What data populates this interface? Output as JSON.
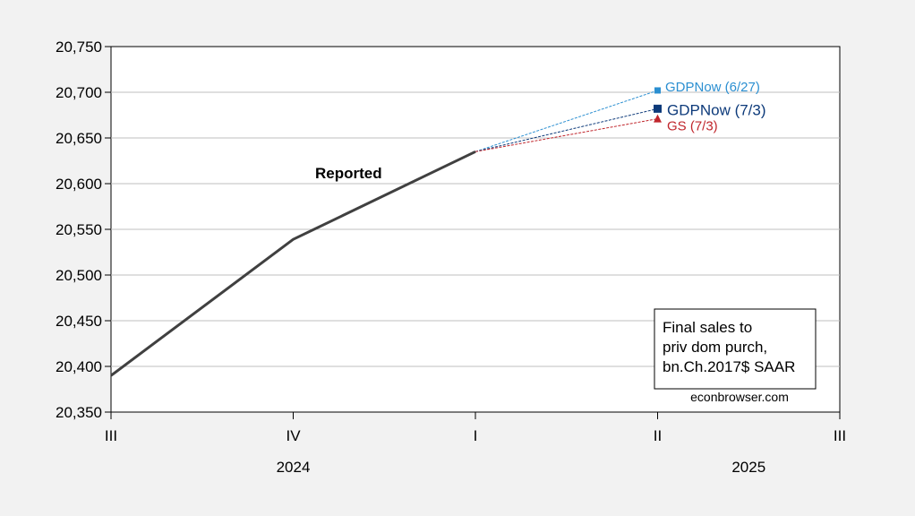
{
  "chart_data": {
    "type": "line",
    "x_categories": [
      "III",
      "IV",
      "I",
      "II",
      "III"
    ],
    "year_labels": [
      {
        "label": "2024",
        "at_index": 1
      },
      {
        "label": "2025",
        "at_index": 3.5
      }
    ],
    "ylim": [
      20350,
      20750
    ],
    "yticks": [
      20350,
      20400,
      20450,
      20500,
      20550,
      20600,
      20650,
      20700,
      20750
    ],
    "ytick_labels": [
      "20,350",
      "20,400",
      "20,450",
      "20,500",
      "20,550",
      "20,600",
      "20,650",
      "20,700",
      "20,750"
    ],
    "grid": true,
    "series": [
      {
        "name": "Reported",
        "color": "#404040",
        "line_style": "solid",
        "points": [
          {
            "x": 0,
            "y": 20390
          },
          {
            "x": 1,
            "y": 20539
          },
          {
            "x": 2,
            "y": 20635
          }
        ]
      },
      {
        "name": "GDPNow (6/27)",
        "color": "#2b8fd1",
        "line_style": "dashed",
        "marker": "square-small",
        "points": [
          {
            "x": 2,
            "y": 20635
          },
          {
            "x": 3,
            "y": 20702
          }
        ]
      },
      {
        "name": "GDPNow (7/3)",
        "color": "#0d3a7a",
        "line_style": "dashed",
        "marker": "square",
        "points": [
          {
            "x": 2,
            "y": 20635
          },
          {
            "x": 3,
            "y": 20682
          }
        ]
      },
      {
        "name": "GS (7/3)",
        "color": "#c0262c",
        "line_style": "dashed",
        "marker": "triangle",
        "points": [
          {
            "x": 2,
            "y": 20635
          },
          {
            "x": 3,
            "y": 20671
          }
        ]
      }
    ],
    "annotation_box": [
      "Final sales to",
      "priv dom purch,",
      "bn.Ch.2017$ SAAR"
    ],
    "credit": "econbrowser.com"
  }
}
